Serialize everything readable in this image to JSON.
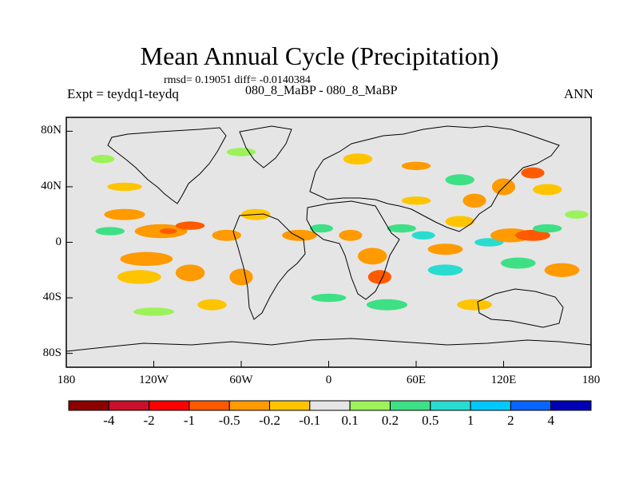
{
  "title": "Mean Annual Cycle (Precipitation)",
  "stats": "rmsd= 0.19051 diff= -0.0140384",
  "left_label": "Expt = teydq1-teydq",
  "center_label": "080_8_MaBP - 080_8_MaBP",
  "right_label": "ANN",
  "lat_ticks": [
    {
      "label": "80N",
      "value": 80
    },
    {
      "label": "40N",
      "value": 40
    },
    {
      "label": "0",
      "value": 0
    },
    {
      "label": "40S",
      "value": -40
    },
    {
      "label": "80S",
      "value": -80
    }
  ],
  "lon_ticks": [
    {
      "label": "180",
      "value": -180
    },
    {
      "label": "120W",
      "value": -120
    },
    {
      "label": "60W",
      "value": -60
    },
    {
      "label": "0",
      "value": 0
    },
    {
      "label": "60E",
      "value": 60
    },
    {
      "label": "120E",
      "value": 120
    },
    {
      "label": "180",
      "value": 180
    }
  ],
  "colorbar": {
    "colors": [
      "#8b0000",
      "#c8102e",
      "#ff0000",
      "#ff5a00",
      "#ff9a00",
      "#ffc400",
      "#e5e5e5",
      "#9cf25a",
      "#3ee085",
      "#29dcd0",
      "#00c8ff",
      "#0a64ff",
      "#0000b4"
    ],
    "labels": [
      "-4",
      "-2",
      "-1",
      "-0.5",
      "-0.2",
      "-0.1",
      "0.1",
      "0.2",
      "0.5",
      "1",
      "2",
      "4"
    ]
  },
  "map_background": "#e5e5e5",
  "anomaly_blobs": [
    {
      "lon": -140,
      "lat": 20,
      "rx": 14,
      "ry": 4,
      "cls": 4
    },
    {
      "lon": -115,
      "lat": 8,
      "rx": 18,
      "ry": 5,
      "cls": 4
    },
    {
      "lon": -110,
      "lat": 8,
      "rx": 6,
      "ry": 2,
      "cls": 3
    },
    {
      "lon": -95,
      "lat": 12,
      "rx": 10,
      "ry": 3,
      "cls": 3
    },
    {
      "lon": -150,
      "lat": 8,
      "rx": 10,
      "ry": 3,
      "cls": 8
    },
    {
      "lon": -125,
      "lat": -12,
      "rx": 18,
      "ry": 5,
      "cls": 4
    },
    {
      "lon": -130,
      "lat": -25,
      "rx": 15,
      "ry": 5,
      "cls": 5
    },
    {
      "lon": -95,
      "lat": -22,
      "rx": 10,
      "ry": 6,
      "cls": 4
    },
    {
      "lon": -140,
      "lat": 40,
      "rx": 12,
      "ry": 3,
      "cls": 5
    },
    {
      "lon": -155,
      "lat": 60,
      "rx": 8,
      "ry": 3,
      "cls": 7
    },
    {
      "lon": -70,
      "lat": 5,
      "rx": 10,
      "ry": 4,
      "cls": 4
    },
    {
      "lon": -60,
      "lat": -25,
      "rx": 8,
      "ry": 6,
      "cls": 4
    },
    {
      "lon": -50,
      "lat": 20,
      "rx": 10,
      "ry": 4,
      "cls": 5
    },
    {
      "lon": -20,
      "lat": 5,
      "rx": 12,
      "ry": 4,
      "cls": 4
    },
    {
      "lon": -5,
      "lat": 10,
      "rx": 8,
      "ry": 3,
      "cls": 8
    },
    {
      "lon": 15,
      "lat": 5,
      "rx": 8,
      "ry": 4,
      "cls": 4
    },
    {
      "lon": 30,
      "lat": -10,
      "rx": 10,
      "ry": 6,
      "cls": 4
    },
    {
      "lon": 35,
      "lat": -25,
      "rx": 8,
      "ry": 5,
      "cls": 3
    },
    {
      "lon": 50,
      "lat": 10,
      "rx": 10,
      "ry": 3,
      "cls": 8
    },
    {
      "lon": 65,
      "lat": 5,
      "rx": 8,
      "ry": 3,
      "cls": 9
    },
    {
      "lon": 80,
      "lat": -5,
      "rx": 12,
      "ry": 4,
      "cls": 4
    },
    {
      "lon": 90,
      "lat": 15,
      "rx": 10,
      "ry": 4,
      "cls": 5
    },
    {
      "lon": 110,
      "lat": 0,
      "rx": 10,
      "ry": 3,
      "cls": 9
    },
    {
      "lon": 125,
      "lat": 5,
      "rx": 14,
      "ry": 5,
      "cls": 4
    },
    {
      "lon": 140,
      "lat": 5,
      "rx": 12,
      "ry": 4,
      "cls": 3
    },
    {
      "lon": 150,
      "lat": 10,
      "rx": 10,
      "ry": 3,
      "cls": 8
    },
    {
      "lon": 130,
      "lat": -15,
      "rx": 12,
      "ry": 4,
      "cls": 8
    },
    {
      "lon": 160,
      "lat": -20,
      "rx": 12,
      "ry": 5,
      "cls": 4
    },
    {
      "lon": 120,
      "lat": 40,
      "rx": 8,
      "ry": 6,
      "cls": 4
    },
    {
      "lon": 140,
      "lat": 50,
      "rx": 8,
      "ry": 4,
      "cls": 3
    },
    {
      "lon": 150,
      "lat": 38,
      "rx": 10,
      "ry": 4,
      "cls": 5
    },
    {
      "lon": 170,
      "lat": 20,
      "rx": 8,
      "ry": 3,
      "cls": 7
    },
    {
      "lon": -60,
      "lat": 65,
      "rx": 10,
      "ry": 3,
      "cls": 7
    },
    {
      "lon": 20,
      "lat": 60,
      "rx": 10,
      "ry": 4,
      "cls": 5
    },
    {
      "lon": 60,
      "lat": 55,
      "rx": 10,
      "ry": 3,
      "cls": 4
    },
    {
      "lon": 90,
      "lat": 45,
      "rx": 10,
      "ry": 4,
      "cls": 8
    },
    {
      "lon": 0,
      "lat": -40,
      "rx": 12,
      "ry": 3,
      "cls": 8
    },
    {
      "lon": 40,
      "lat": -45,
      "rx": 14,
      "ry": 4,
      "cls": 8
    },
    {
      "lon": 100,
      "lat": -45,
      "rx": 12,
      "ry": 4,
      "cls": 5
    },
    {
      "lon": -120,
      "lat": -50,
      "rx": 14,
      "ry": 3,
      "cls": 7
    },
    {
      "lon": 80,
      "lat": -20,
      "rx": 12,
      "ry": 4,
      "cls": 9
    },
    {
      "lon": -80,
      "lat": -45,
      "rx": 10,
      "ry": 4,
      "cls": 5
    },
    {
      "lon": 100,
      "lat": 30,
      "rx": 8,
      "ry": 5,
      "cls": 4
    },
    {
      "lon": 60,
      "lat": 30,
      "rx": 10,
      "ry": 3,
      "cls": 5
    }
  ]
}
